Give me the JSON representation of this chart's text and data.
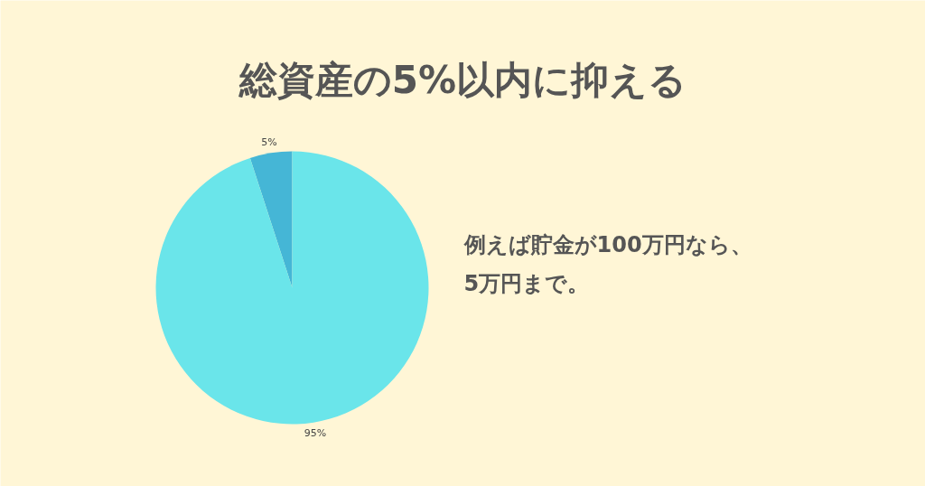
{
  "chart_data": {
    "type": "pie",
    "title": "総資産の5%以内に抑える",
    "categories": [
      null,
      null
    ],
    "values": [
      5,
      95
    ],
    "colors": [
      "#45b6d6",
      "#6ae5ea"
    ],
    "value_labels": [
      "5%",
      "95%"
    ],
    "annotations": [
      "例えば貯金が100万円なら、\n5万円まで。"
    ]
  }
}
